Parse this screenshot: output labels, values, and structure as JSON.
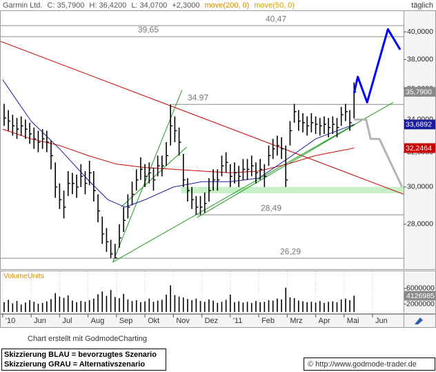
{
  "chart_data": {
    "type": "ohlc",
    "title": "Garmin Ltd.",
    "stats": [
      "C: 35,7900",
      "H: 36,4200",
      "L: 34,0700",
      "+2,3000"
    ],
    "period": "täglich",
    "log_scale": true,
    "grid": false,
    "xlim": [
      -0.07,
      14.09
    ],
    "xticks": [
      {
        "value": 0,
        "label": "'10"
      },
      {
        "value": 1,
        "label": "Jun"
      },
      {
        "value": 2,
        "label": "Jul"
      },
      {
        "value": 3,
        "label": "Aug"
      },
      {
        "value": 4,
        "label": "Sep"
      },
      {
        "value": 5,
        "label": "Okt"
      },
      {
        "value": 6,
        "label": "Nov"
      },
      {
        "value": 7,
        "label": "Dez"
      },
      {
        "value": 8,
        "label": "'11"
      },
      {
        "value": 9,
        "label": "Feb"
      },
      {
        "value": 10,
        "label": "Mrz"
      },
      {
        "value": 11,
        "label": "Apr"
      },
      {
        "value": 12,
        "label": "Mai"
      },
      {
        "value": 13,
        "label": "Jun"
      }
    ],
    "ylim": [
      25.76,
      41.63
    ],
    "yticks": [
      {
        "value": 40,
        "label": "40,0000"
      },
      {
        "value": 38,
        "label": "38,0000"
      },
      {
        "value": 36,
        "label": "36,0000"
      },
      {
        "value": 34,
        "label": "34,0000"
      },
      {
        "value": 32,
        "label": "32,0000"
      },
      {
        "value": 30,
        "label": "30,0000"
      },
      {
        "value": 28,
        "label": "28,0000"
      }
    ],
    "color": "#000000",
    "x": [
      0.05,
      0.2,
      0.35,
      0.5,
      0.65,
      0.8,
      0.95,
      1.1,
      1.25,
      1.4,
      1.55,
      1.7,
      1.85,
      2,
      2.15,
      2.3,
      2.45,
      2.6,
      2.75,
      2.9,
      3.05,
      3.2,
      3.35,
      3.5,
      3.65,
      3.8,
      3.95,
      4.1,
      4.25,
      4.4,
      4.55,
      4.7,
      4.85,
      5,
      5.15,
      5.3,
      5.45,
      5.6,
      5.75,
      5.9,
      6.05,
      6.2,
      6.35,
      6.5,
      6.65,
      6.8,
      6.95,
      7.1,
      7.25,
      7.4,
      7.55,
      7.7,
      7.85,
      8,
      8.15,
      8.3,
      8.45,
      8.6,
      8.75,
      8.9,
      9.05,
      9.2,
      9.35,
      9.5,
      9.65,
      9.8,
      9.95,
      10.1,
      10.25,
      10.4,
      10.55,
      10.7,
      10.85,
      11,
      11.15,
      11.3,
      11.45,
      11.6,
      11.75,
      11.9,
      12.05,
      12.2,
      12.35
    ],
    "high": [
      35.0,
      34.6,
      34.3,
      34.1,
      34.2,
      34.0,
      33.8,
      33.5,
      33.3,
      33.4,
      33.3,
      32.7,
      31.4,
      30.2,
      29.8,
      30.9,
      30.8,
      30.7,
      31.3,
      30.9,
      31.5,
      30.9,
      29.6,
      28.4,
      27.8,
      27.2,
      27.0,
      28.0,
      28.9,
      29.6,
      30.3,
      31.0,
      31.7,
      31.3,
      31.4,
      31.1,
      31.8,
      31.8,
      32.6,
      34.97,
      34.2,
      33.5,
      31.9,
      30.5,
      30.0,
      29.5,
      29.5,
      29.7,
      30.5,
      31.0,
      31.0,
      31.8,
      32.0,
      31.3,
      31.4,
      31.2,
      31.6,
      31.6,
      31.8,
      31.4,
      31.6,
      31.3,
      32.4,
      32.8,
      33.0,
      32.9,
      32.4,
      33.9,
      35.0,
      34.6,
      34.4,
      34.2,
      34.4,
      34.2,
      34.1,
      34.2,
      34.1,
      34.2,
      34.1,
      34.8,
      35.0,
      34.6,
      36.42
    ],
    "low": [
      33.6,
      33.3,
      33.0,
      32.8,
      33.0,
      32.8,
      32.5,
      32.2,
      32.0,
      32.2,
      32.0,
      31.0,
      29.4,
      28.8,
      28.3,
      29.5,
      29.6,
      29.4,
      30.0,
      29.6,
      30.1,
      29.2,
      28.1,
      27.0,
      26.6,
      26.3,
      26.29,
      26.8,
      27.6,
      28.3,
      29.0,
      29.8,
      30.4,
      30.0,
      30.2,
      29.8,
      30.6,
      30.6,
      31.2,
      32.4,
      32.6,
      31.8,
      30.0,
      29.2,
      28.8,
      28.49,
      28.5,
      28.6,
      29.2,
      29.8,
      29.8,
      30.6,
      30.8,
      30.0,
      30.2,
      30.0,
      30.4,
      30.4,
      30.6,
      30.2,
      30.4,
      30.0,
      31.2,
      31.6,
      31.8,
      31.6,
      30.0,
      32.4,
      33.8,
      33.3,
      33.2,
      33.0,
      33.2,
      33.1,
      33.0,
      33.1,
      32.9,
      33.1,
      32.9,
      33.6,
      33.9,
      33.3,
      34.07
    ],
    "close": [
      34.1,
      33.9,
      33.6,
      33.4,
      33.6,
      33.4,
      33.1,
      32.8,
      32.6,
      32.8,
      32.6,
      31.8,
      30.0,
      29.3,
      28.9,
      30.2,
      30.2,
      30.0,
      30.6,
      30.2,
      30.8,
      29.8,
      28.7,
      27.5,
      27.1,
      26.5,
      26.3,
      27.3,
      28.2,
      28.9,
      29.6,
      30.4,
      31.0,
      30.6,
      30.8,
      30.4,
      31.2,
      31.2,
      31.8,
      33.6,
      33.3,
      32.6,
      30.4,
      29.8,
      29.3,
      28.9,
      28.9,
      29.1,
      29.8,
      30.4,
      30.4,
      31.2,
      31.4,
      30.6,
      30.8,
      30.6,
      31.0,
      31.0,
      31.2,
      30.8,
      31.0,
      30.6,
      31.8,
      32.2,
      32.4,
      32.2,
      30.4,
      33.3,
      34.5,
      33.9,
      33.8,
      33.6,
      33.8,
      33.7,
      33.6,
      33.7,
      33.5,
      33.7,
      33.5,
      34.3,
      34.5,
      33.8,
      35.79
    ],
    "series": [
      {
        "name": "move(200, 0)",
        "color": "#cc0000",
        "x": [
          0,
          1,
          2,
          3,
          4,
          5,
          6,
          7,
          8,
          9,
          10,
          11,
          12.35
        ],
        "values": [
          33.4,
          32.8,
          32.4,
          31.8,
          31.3,
          31.1,
          31.0,
          30.9,
          30.8,
          30.9,
          31.3,
          31.8,
          32.2464
        ]
      },
      {
        "name": "move(50, 0)",
        "color": "#1a1a9c",
        "x": [
          0,
          1,
          2,
          3,
          3.7,
          4.3,
          5,
          6,
          7,
          8,
          9,
          10,
          11,
          12.35
        ],
        "values": [
          36.6,
          33.9,
          32.2,
          30.4,
          29.3,
          28.9,
          29.3,
          30.0,
          30.3,
          30.3,
          30.5,
          31.6,
          32.8,
          33.6892
        ]
      }
    ],
    "tags": [
      {
        "value": 35.79,
        "label": "35,7900",
        "color": "#8a8a8a"
      },
      {
        "value": 33.6892,
        "label": "33,6892",
        "color": "#1a1a9c"
      },
      {
        "value": 32.2464,
        "label": "32,2464",
        "color": "#cc0000"
      }
    ],
    "levels": [
      {
        "value": 40.47,
        "label": "40,47"
      },
      {
        "value": 39.65,
        "label": "39,65"
      },
      {
        "value": 34.97,
        "label": "34.97",
        "from": 5.93
      },
      {
        "value": 28.49,
        "label": "28,49",
        "from": 6.83
      },
      {
        "value": 26.29,
        "label": "26,29"
      }
    ],
    "zone": {
      "from": 6.27,
      "range": [
        29.65,
        30.0
      ],
      "color": "#c6efc6"
    },
    "trendlines": [
      {
        "color": "#cc0000",
        "x": [
          -0.07,
          14.09
        ],
        "values": [
          39.3,
          29.6
        ]
      },
      {
        "color": "#1e9a1e",
        "x": [
          3.87,
          13.73
        ],
        "values": [
          26.1,
          35.1
        ]
      },
      {
        "color": "#1e9a1e",
        "x": [
          3.87,
          6.3
        ],
        "values": [
          26.1,
          35.9
        ]
      },
      {
        "color": "#1e9a1e",
        "x": [
          4.16,
          6.46
        ],
        "values": [
          28.9,
          32.3
        ]
      },
      {
        "color": "#1e9a1e",
        "x": [
          6.83,
          12.4
        ],
        "values": [
          28.35,
          33.7
        ]
      }
    ],
    "scenarios": [
      {
        "color": "#0000ff",
        "x": [
          12.35,
          12.48,
          12.81,
          13.54,
          13.97
        ],
        "values": [
          35.7,
          36.8,
          35.1,
          40.2,
          38.7
        ]
      },
      {
        "color": "#b4b4b4",
        "x": [
          12.35,
          12.77,
          12.93,
          13.24,
          14.04
        ],
        "values": [
          34.0,
          34.0,
          32.8,
          32.8,
          30.0
        ]
      }
    ],
    "volume": {
      "label": "VolumeUnits",
      "color": "#000000",
      "ylim": [
        0,
        10200000
      ],
      "yticks": [
        6000000,
        2000000
      ],
      "tag": {
        "value": 4126985,
        "label": "4126985",
        "color": "#8a8a8a"
      },
      "values": [
        2500000,
        3100000,
        2200000,
        2800000,
        1900000,
        2400000,
        3000000,
        2600000,
        2100000,
        2300000,
        2700000,
        3300000,
        4800000,
        3900000,
        3600000,
        4200000,
        2900000,
        2500000,
        2800000,
        2600000,
        3000000,
        3400000,
        4500000,
        5200000,
        4100000,
        5600000,
        3800000,
        3500000,
        4600000,
        3200000,
        2800000,
        3000000,
        2500000,
        2700000,
        3400000,
        2600000,
        2900000,
        3100000,
        4400000,
        6800000,
        4300000,
        3900000,
        3700000,
        3300000,
        3000000,
        3400000,
        2800000,
        2600000,
        3200000,
        2900000,
        2300000,
        2600000,
        3100000,
        4400000,
        2500000,
        2700000,
        2400000,
        2600000,
        2300000,
        2800000,
        2500000,
        2600000,
        3000000,
        2900000,
        3400000,
        3200000,
        6200000,
        3700000,
        3500000,
        2900000,
        2700000,
        2500000,
        2600000,
        2400000,
        2800000,
        2300000,
        2600000,
        2700000,
        2500000,
        3200000,
        3400000,
        3000000,
        4126985
      ]
    }
  },
  "footer": {
    "credit": "Chart erstellt mit GodmodeCharting",
    "notes": [
      "Skizzierung BLAU = bevorzugtes Szenario",
      "Skizzierung GRAU = Alternativszenario"
    ],
    "source": "© http://www.godmode-trader.de"
  }
}
